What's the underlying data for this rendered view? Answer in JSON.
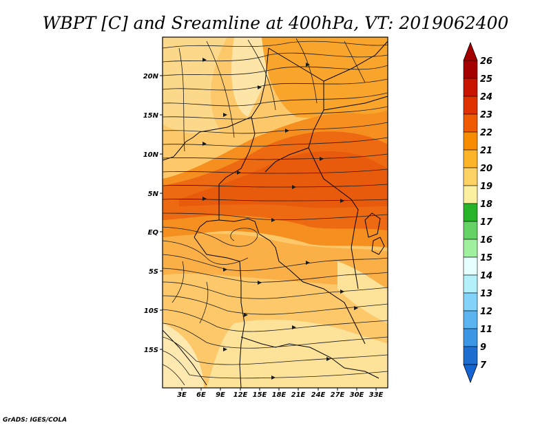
{
  "map": {
    "title": "WBPT [C] and Sreamline at 400hPa, VT: 2019062400",
    "footer": "GrADS: IGES/COLA",
    "lon_labels": [
      "3E",
      "6E",
      "9E",
      "12E",
      "15E",
      "18E",
      "21E",
      "24E",
      "27E",
      "30E",
      "33E"
    ],
    "lat_labels": [
      "20N",
      "15N",
      "10N",
      "5N",
      "EQ",
      "5S",
      "10S",
      "15S"
    ],
    "colorbar": {
      "labels": [
        "26",
        "25",
        "24",
        "23",
        "22",
        "21",
        "20",
        "19",
        "18",
        "17",
        "16",
        "15",
        "14",
        "13",
        "12",
        "11",
        "9",
        "7"
      ],
      "colors": [
        "#a50000",
        "#c81400",
        "#e03200",
        "#f05a00",
        "#f88c00",
        "#fcb428",
        "#fcd264",
        "#fcf0a0",
        "#28b428",
        "#64d264",
        "#a0f0a0",
        "#e6ffff",
        "#b4f0fa",
        "#82d2fa",
        "#5ab4f0",
        "#3c96e6",
        "#1e6ed2"
      ],
      "top_arrow_color": "#a50000",
      "bottom_arrow_color": "#1464d2"
    }
  }
}
